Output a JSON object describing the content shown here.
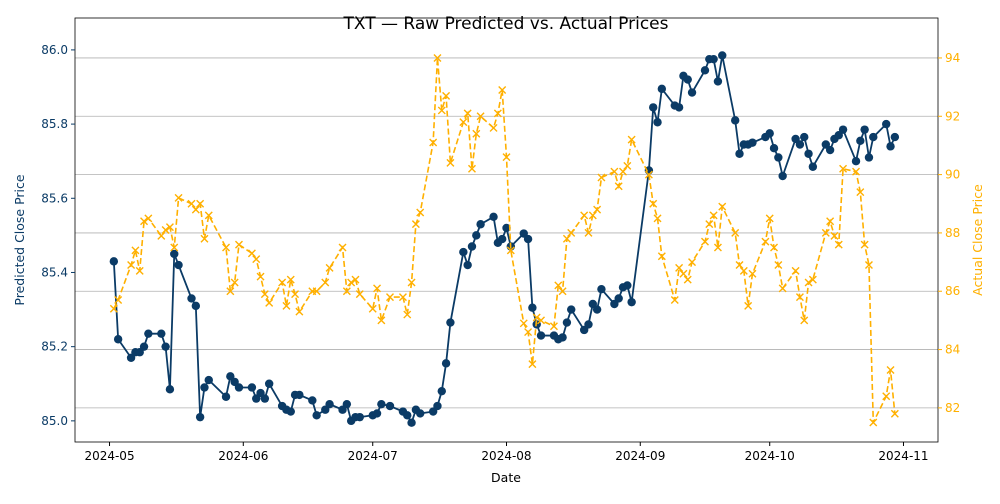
{
  "chart_data": {
    "type": "line",
    "title": "TXT — Raw Predicted vs. Actual Prices",
    "xlabel": "Date",
    "ylabel": "Predicted Close Price",
    "y2label": "Actual Close Price",
    "x": [
      123,
      124,
      127,
      128,
      129,
      130,
      131,
      134,
      135,
      136,
      137,
      138,
      141,
      142,
      143,
      144,
      145,
      149,
      150,
      151,
      152,
      155,
      156,
      157,
      158,
      159,
      162,
      163,
      164,
      165,
      166,
      169,
      170,
      172,
      173,
      176,
      177,
      178,
      179,
      180,
      183,
      184,
      185,
      187,
      190,
      191,
      192,
      193,
      194,
      197,
      198,
      199,
      200,
      201,
      204,
      205,
      206,
      207,
      208,
      211,
      212,
      213,
      214,
      215,
      218,
      219,
      220,
      221,
      222,
      225,
      226,
      227,
      228,
      229,
      232,
      233,
      234,
      235,
      236,
      239,
      240,
      241,
      242,
      243,
      247,
      248,
      249,
      250,
      253,
      254,
      255,
      256,
      257,
      260,
      261,
      262,
      263,
      264,
      267,
      268,
      269,
      270,
      271,
      274,
      275,
      276,
      277,
      278,
      281,
      282,
      283,
      284,
      285,
      288,
      289,
      290,
      291,
      292,
      295,
      296,
      297,
      298,
      299,
      302,
      303,
      304
    ],
    "series": [
      {
        "name": "Predicted Close Price",
        "color": "#0b3b66",
        "marker": "circle",
        "dashed": false,
        "axis": "y",
        "values": [
          85.43,
          85.22,
          85.17,
          85.185,
          85.185,
          85.2,
          85.235,
          85.235,
          85.2,
          85.085,
          85.45,
          85.42,
          85.33,
          85.31,
          85.01,
          85.09,
          85.11,
          85.065,
          85.12,
          85.105,
          85.09,
          85.09,
          85.06,
          85.075,
          85.06,
          85.1,
          85.04,
          85.03,
          85.025,
          85.07,
          85.07,
          85.055,
          85.015,
          85.03,
          85.045,
          85.03,
          85.045,
          85.0,
          85.01,
          85.01,
          85.015,
          85.02,
          85.045,
          85.04,
          85.025,
          85.015,
          84.995,
          85.03,
          85.02,
          85.025,
          85.04,
          85.08,
          85.155,
          85.265,
          85.455,
          85.42,
          85.47,
          85.5,
          85.53,
          85.55,
          85.48,
          85.49,
          85.52,
          85.47,
          85.505,
          85.49,
          85.305,
          85.26,
          85.23,
          85.23,
          85.22,
          85.225,
          85.265,
          85.3,
          85.245,
          85.26,
          85.315,
          85.3,
          85.355,
          85.315,
          85.33,
          85.36,
          85.365,
          85.32,
          85.675,
          85.845,
          85.805,
          85.895,
          85.85,
          85.845,
          85.93,
          85.92,
          85.885,
          85.945,
          85.975,
          85.975,
          85.915,
          85.985,
          85.81,
          85.72,
          85.745,
          85.745,
          85.75,
          85.765,
          85.775,
          85.735,
          85.71,
          85.66,
          85.76,
          85.745,
          85.765,
          85.72,
          85.685,
          85.745,
          85.73,
          85.76,
          85.77,
          85.785,
          85.7,
          85.755,
          85.785,
          85.71,
          85.765,
          85.8,
          85.74,
          85.765
        ]
      },
      {
        "name": "Actual Close Price",
        "color": "#ffb000",
        "marker": "x",
        "dashed": true,
        "axis": "y2",
        "values": [
          85.4,
          85.7,
          86.9,
          87.4,
          86.7,
          88.4,
          88.5,
          87.9,
          88.1,
          88.2,
          87.5,
          89.2,
          89.0,
          88.8,
          89.0,
          87.8,
          88.6,
          87.5,
          86.0,
          86.3,
          87.6,
          87.3,
          87.1,
          86.5,
          85.9,
          85.6,
          86.3,
          85.5,
          86.4,
          85.9,
          85.3,
          86.0,
          86.0,
          86.3,
          86.8,
          87.5,
          86.0,
          86.3,
          86.4,
          85.9,
          85.4,
          86.1,
          85.0,
          85.8,
          85.8,
          85.2,
          86.3,
          88.3,
          88.7,
          91.1,
          94.0,
          92.2,
          92.7,
          90.4,
          91.8,
          92.1,
          90.2,
          91.4,
          92.0,
          91.6,
          92.1,
          92.9,
          90.6,
          87.4,
          84.9,
          84.6,
          83.5,
          85.1,
          85.0,
          84.8,
          86.2,
          86.0,
          87.8,
          88.0,
          88.6,
          88.0,
          88.6,
          88.8,
          89.9,
          90.1,
          89.6,
          90.1,
          90.3,
          91.2,
          90.0,
          89.0,
          88.5,
          87.2,
          85.7,
          86.8,
          86.6,
          86.4,
          87.0,
          87.7,
          88.3,
          88.6,
          87.5,
          88.9,
          88.0,
          86.9,
          86.7,
          85.5,
          86.6,
          87.7,
          88.5,
          87.5,
          86.9,
          86.1,
          86.7,
          85.8,
          85.0,
          86.3,
          86.4,
          88.0,
          88.4,
          87.9,
          87.6,
          90.2,
          90.1,
          89.4,
          87.6,
          86.9,
          81.5,
          82.4,
          83.3,
          81.8
        ]
      }
    ],
    "xlim": [
      114,
      314
    ],
    "xticks": [
      {
        "value": 122,
        "label": "2024-05"
      },
      {
        "value": 153,
        "label": "2024-06"
      },
      {
        "value": 183,
        "label": "2024-07"
      },
      {
        "value": 214,
        "label": "2024-08"
      },
      {
        "value": 245,
        "label": "2024-09"
      },
      {
        "value": 275,
        "label": "2024-10"
      },
      {
        "value": 306,
        "label": "2024-11"
      }
    ],
    "ylim": [
      84.943,
      86.086
    ],
    "yticks": [
      {
        "value": 85,
        "label": "85.0"
      },
      85.2,
      85.4,
      85.6,
      85.8,
      {
        "value": 86,
        "label": "86.0"
      }
    ],
    "y2lim": [
      80.83,
      95.37
    ],
    "y2ticks": [
      82,
      84,
      86,
      88,
      90,
      92,
      94
    ],
    "grid": "y2"
  }
}
